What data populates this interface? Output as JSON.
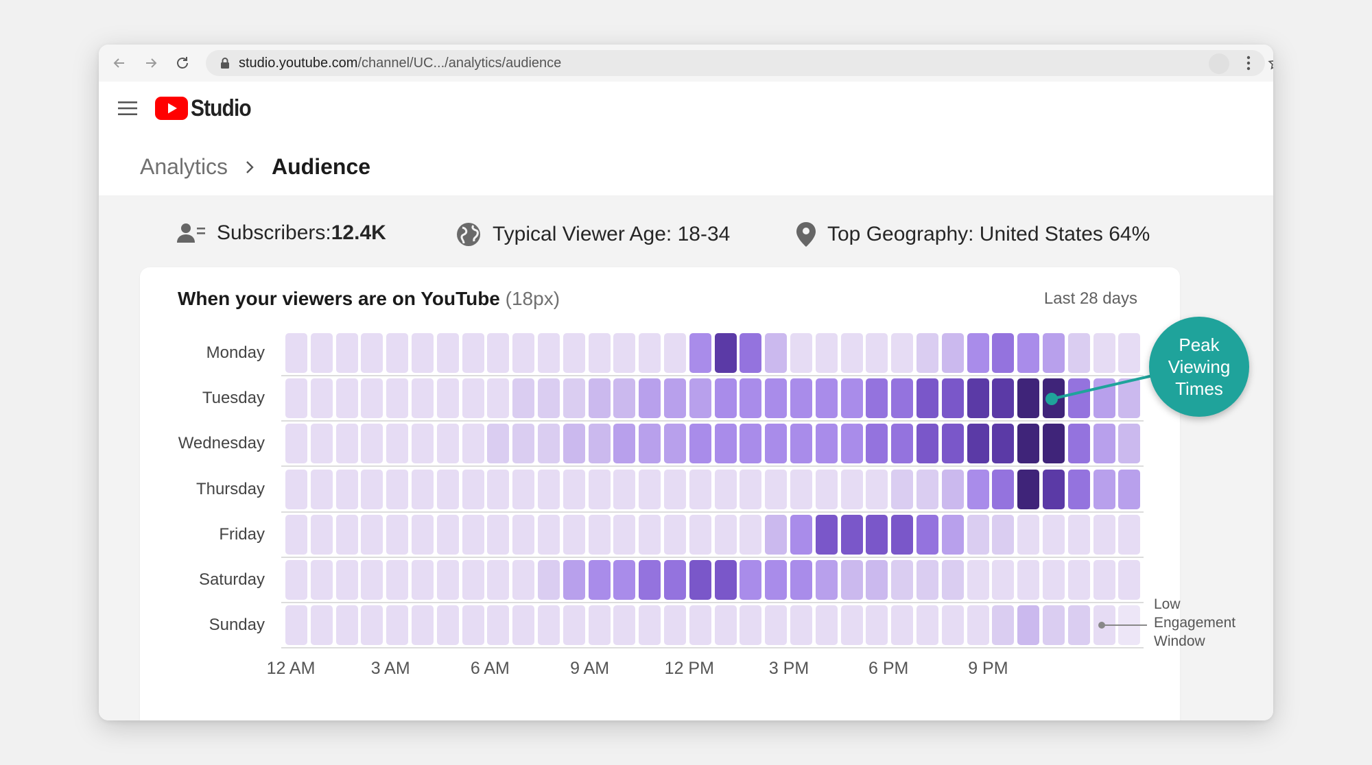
{
  "browser": {
    "url_host": "studio.youtube.com",
    "url_path": "/channel/UC.../analytics/audience"
  },
  "app": {
    "logo_text": "Studio"
  },
  "breadcrumb": {
    "parent": "Analytics",
    "current": "Audience"
  },
  "stats": {
    "subscribers_label": "Subscribers: ",
    "subscribers_value": "12.4K",
    "age": "Typical Viewer Age: 18-34",
    "geo": "Top Geography: United States 64%"
  },
  "card": {
    "title": "When your viewers are on YouTube",
    "title_note": " (18px)",
    "range": "Last 28 days"
  },
  "callouts": {
    "peak": [
      "Peak",
      "Viewing",
      "Times"
    ],
    "low": [
      "Low",
      "Engagement",
      "Window"
    ]
  },
  "colors": {
    "scale": [
      "#ede6f7",
      "#e6dcf4",
      "#dacdf1",
      "#cbb9ee",
      "#b8a0ec",
      "#a98cea",
      "#9473de",
      "#7a57c9",
      "#5b3aa6",
      "#3f2479"
    ],
    "peak_accent": "#1fa39b"
  },
  "chart_data": {
    "type": "heatmap",
    "title": "When your viewers are on YouTube",
    "y_categories": [
      "Monday",
      "Tuesday",
      "Wednesday",
      "Thursday",
      "Friday",
      "Saturday",
      "Sunday"
    ],
    "x_tick_labels": [
      "12 AM",
      "3 AM",
      "6 AM",
      "9 AM",
      "12 PM",
      "3 PM",
      "6 PM",
      "9 PM"
    ],
    "columns": 34,
    "value_scale": [
      0,
      9
    ],
    "values": [
      [
        1,
        1,
        1,
        1,
        1,
        1,
        1,
        1,
        1,
        1,
        1,
        1,
        1,
        1,
        1,
        1,
        5,
        8,
        6,
        3,
        1,
        1,
        1,
        1,
        1,
        2,
        3,
        5,
        6,
        5,
        4,
        2,
        1,
        1
      ],
      [
        1,
        1,
        1,
        1,
        1,
        1,
        1,
        1,
        1,
        2,
        2,
        2,
        3,
        3,
        4,
        4,
        4,
        5,
        5,
        5,
        5,
        5,
        5,
        6,
        6,
        7,
        7,
        8,
        8,
        9,
        9,
        6,
        4,
        3
      ],
      [
        1,
        1,
        1,
        1,
        1,
        1,
        1,
        1,
        2,
        2,
        2,
        3,
        3,
        4,
        4,
        4,
        5,
        5,
        5,
        5,
        5,
        5,
        5,
        6,
        6,
        7,
        7,
        8,
        8,
        9,
        9,
        6,
        4,
        3
      ],
      [
        1,
        1,
        1,
        1,
        1,
        1,
        1,
        1,
        1,
        1,
        1,
        1,
        1,
        1,
        1,
        1,
        1,
        1,
        1,
        1,
        1,
        1,
        1,
        1,
        2,
        2,
        3,
        5,
        6,
        9,
        8,
        6,
        4,
        4
      ],
      [
        1,
        1,
        1,
        1,
        1,
        1,
        1,
        1,
        1,
        1,
        1,
        1,
        1,
        1,
        1,
        1,
        1,
        1,
        1,
        3,
        5,
        7,
        7,
        7,
        7,
        6,
        4,
        2,
        2,
        1,
        1,
        1,
        1,
        1
      ],
      [
        1,
        1,
        1,
        1,
        1,
        1,
        1,
        1,
        1,
        1,
        2,
        4,
        5,
        5,
        6,
        6,
        7,
        7,
        5,
        5,
        5,
        4,
        3,
        3,
        2,
        2,
        2,
        1,
        1,
        1,
        1,
        1,
        1,
        1
      ],
      [
        1,
        1,
        1,
        1,
        1,
        1,
        1,
        1,
        1,
        1,
        1,
        1,
        1,
        1,
        1,
        1,
        1,
        1,
        1,
        1,
        1,
        1,
        1,
        1,
        1,
        1,
        1,
        1,
        2,
        3,
        2,
        2,
        1,
        0
      ]
    ],
    "legend": "none",
    "grid": false
  }
}
